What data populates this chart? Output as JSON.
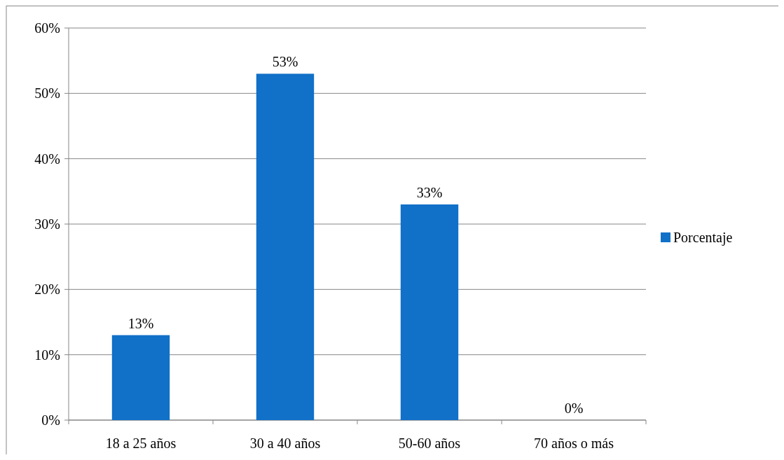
{
  "chart_data": {
    "type": "bar",
    "categories": [
      "18 a 25 años",
      "30 a 40 años",
      "50-60 años",
      "70 años o más"
    ],
    "series": [
      {
        "name": "Porcentaje",
        "color": "#1170c8",
        "values": [
          13,
          53,
          33,
          0
        ],
        "value_labels": [
          "13%",
          "53%",
          "33%",
          "0%"
        ]
      }
    ],
    "ylim": [
      0,
      60
    ],
    "yticks": [
      {
        "value": 0,
        "label": "0%"
      },
      {
        "value": 10,
        "label": "10%"
      },
      {
        "value": 20,
        "label": "20%"
      },
      {
        "value": 30,
        "label": "30%"
      },
      {
        "value": 40,
        "label": "40%"
      },
      {
        "value": 50,
        "label": "50%"
      },
      {
        "value": 60,
        "label": "60%"
      }
    ],
    "grid": "y",
    "legend": "right"
  }
}
